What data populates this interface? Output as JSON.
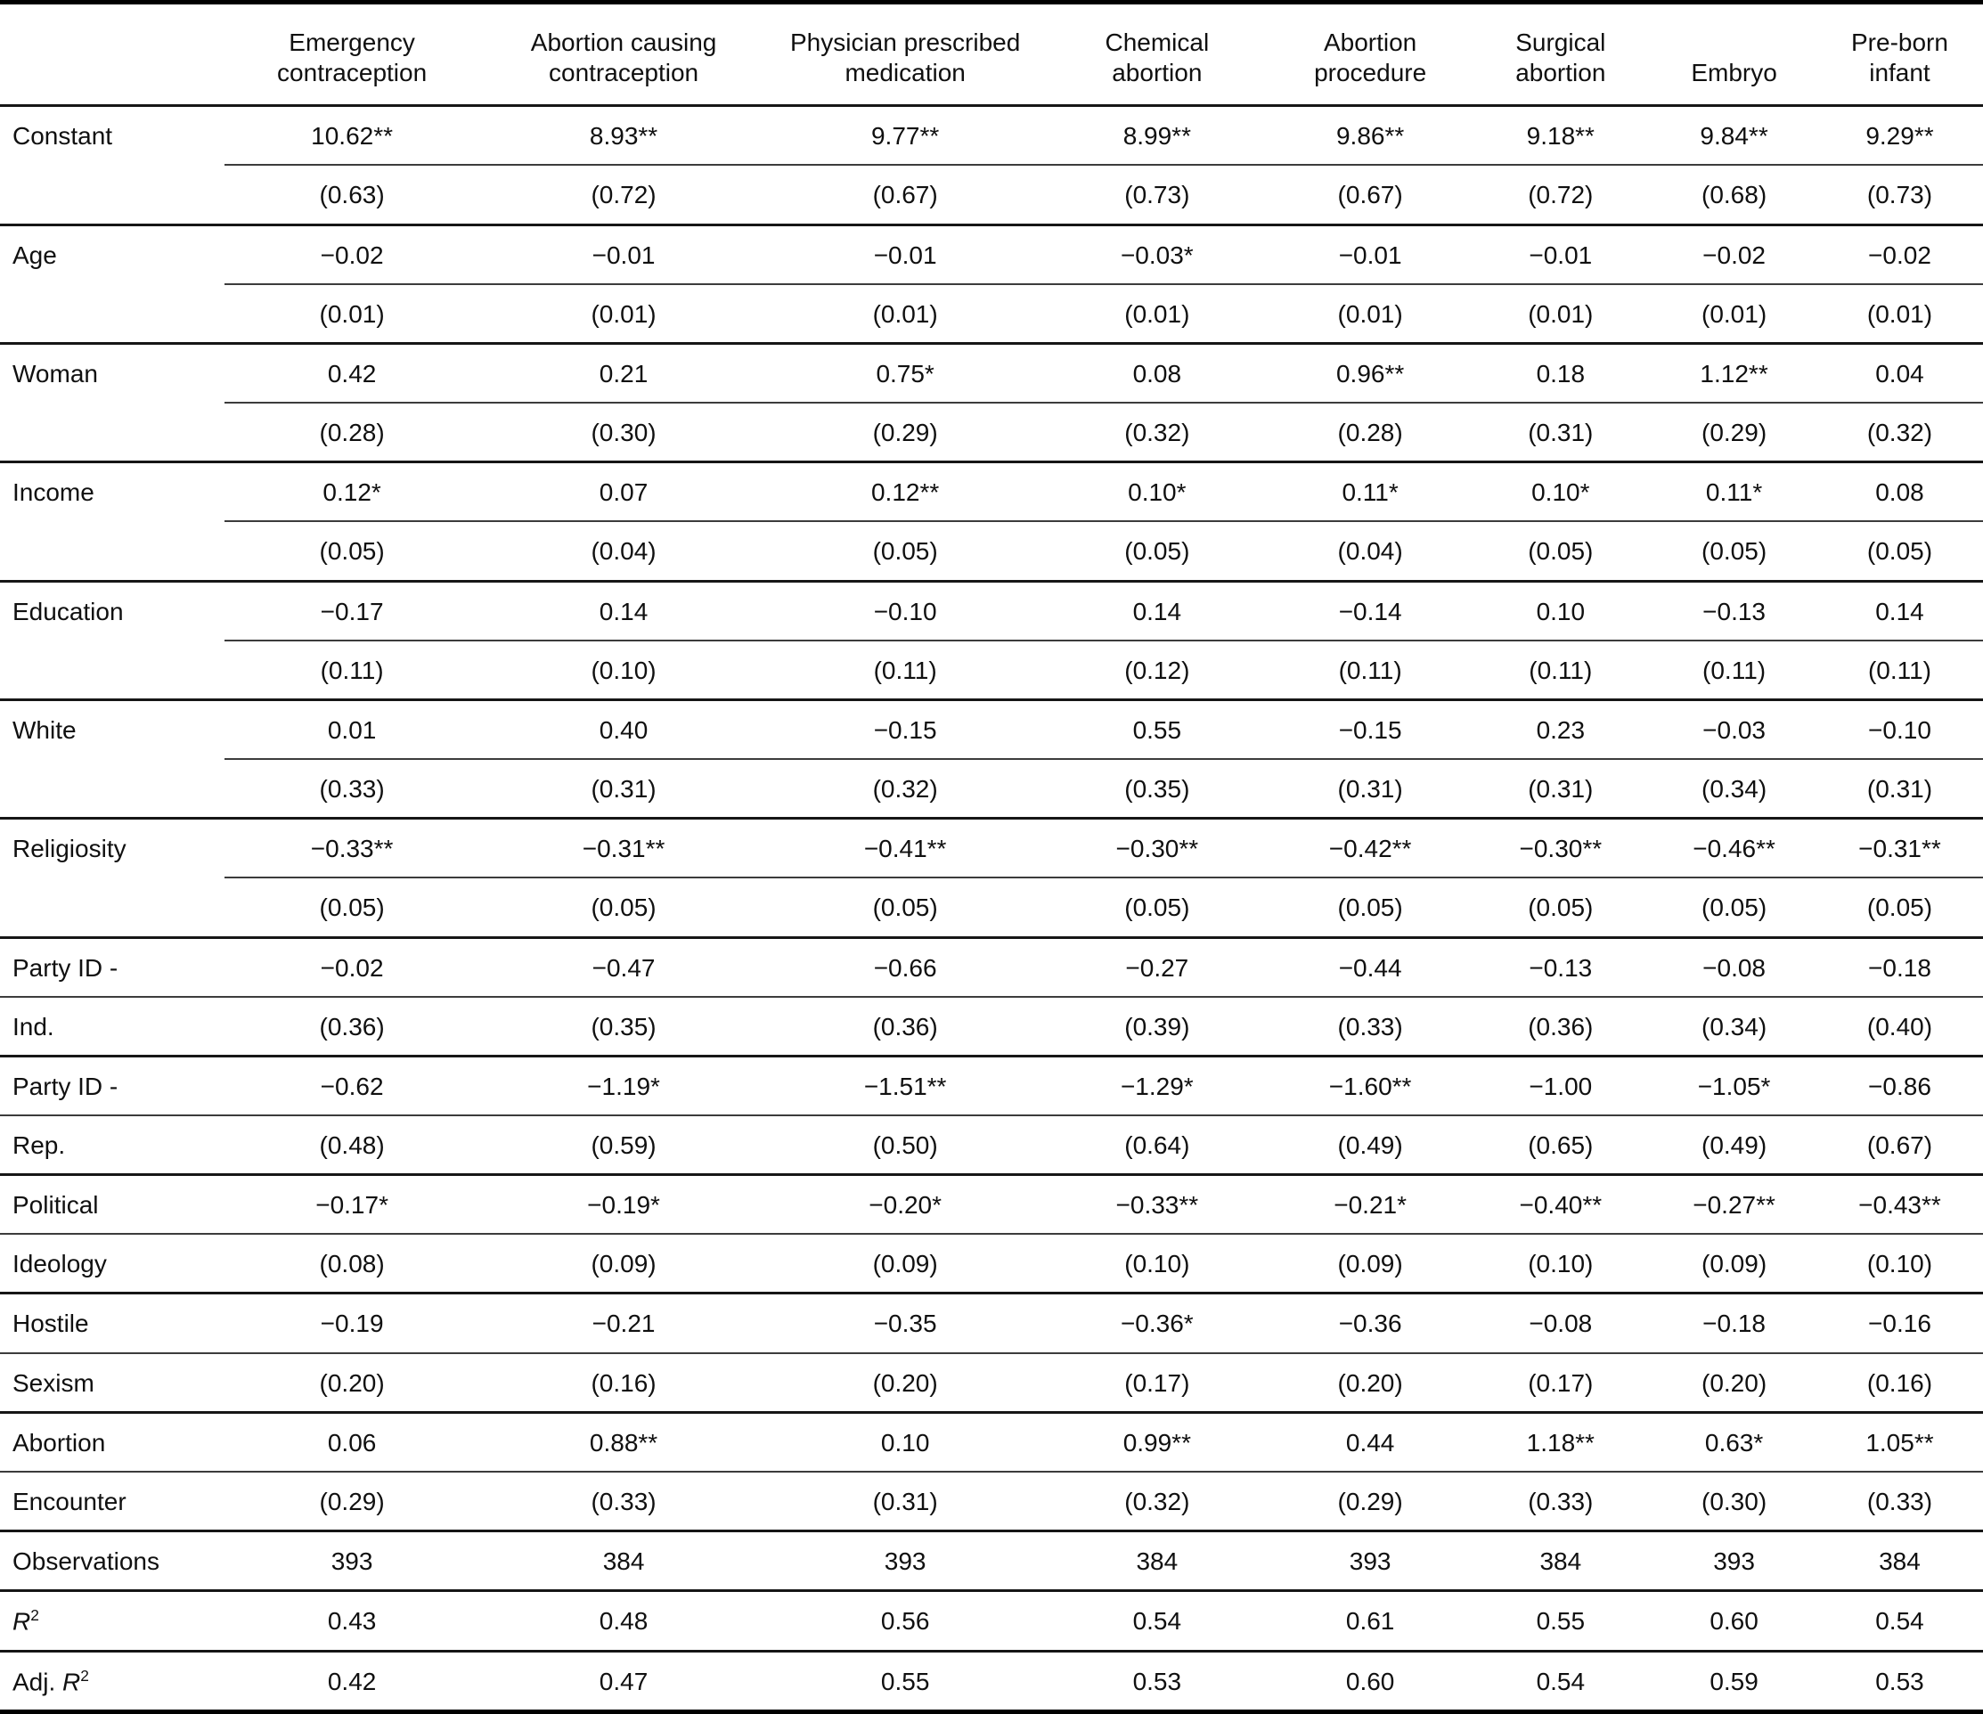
{
  "table": {
    "columns": [
      {
        "lines": [
          "Emergency",
          "contraception"
        ]
      },
      {
        "lines": [
          "Abortion causing",
          "contraception"
        ]
      },
      {
        "lines": [
          "Physician prescribed",
          "medication"
        ]
      },
      {
        "lines": [
          "Chemical",
          "abortion"
        ]
      },
      {
        "lines": [
          "Abortion",
          "procedure"
        ]
      },
      {
        "lines": [
          "Surgical",
          "abortion"
        ]
      },
      {
        "lines": [
          "Embryo"
        ]
      },
      {
        "lines": [
          "Pre-born",
          "infant"
        ]
      }
    ],
    "rows": [
      {
        "type": "block",
        "label": "Constant",
        "coef": [
          "10.62**",
          "8.93**",
          "9.77**",
          "8.99**",
          "9.86**",
          "9.18**",
          "9.84**",
          "9.29**"
        ],
        "se": [
          "(0.63)",
          "(0.72)",
          "(0.67)",
          "(0.73)",
          "(0.67)",
          "(0.72)",
          "(0.68)",
          "(0.73)"
        ]
      },
      {
        "type": "block",
        "label": "Age",
        "coef": [
          "−0.02",
          "−0.01",
          "−0.01",
          "−0.03*",
          "−0.01",
          "−0.01",
          "−0.02",
          "−0.02"
        ],
        "se": [
          "(0.01)",
          "(0.01)",
          "(0.01)",
          "(0.01)",
          "(0.01)",
          "(0.01)",
          "(0.01)",
          "(0.01)"
        ]
      },
      {
        "type": "block",
        "label": "Woman",
        "coef": [
          "0.42",
          "0.21",
          "0.75*",
          "0.08",
          "0.96**",
          "0.18",
          "1.12**",
          "0.04"
        ],
        "se": [
          "(0.28)",
          "(0.30)",
          "(0.29)",
          "(0.32)",
          "(0.28)",
          "(0.31)",
          "(0.29)",
          "(0.32)"
        ]
      },
      {
        "type": "block",
        "label": "Income",
        "coef": [
          "0.12*",
          "0.07",
          "0.12**",
          "0.10*",
          "0.11*",
          "0.10*",
          "0.11*",
          "0.08"
        ],
        "se": [
          "(0.05)",
          "(0.04)",
          "(0.05)",
          "(0.05)",
          "(0.04)",
          "(0.05)",
          "(0.05)",
          "(0.05)"
        ]
      },
      {
        "type": "block",
        "label": "Education",
        "coef": [
          "−0.17",
          "0.14",
          "−0.10",
          "0.14",
          "−0.14",
          "0.10",
          "−0.13",
          "0.14"
        ],
        "se": [
          "(0.11)",
          "(0.10)",
          "(0.11)",
          "(0.12)",
          "(0.11)",
          "(0.11)",
          "(0.11)",
          "(0.11)"
        ]
      },
      {
        "type": "block",
        "label": "White",
        "coef": [
          "0.01",
          "0.40",
          "−0.15",
          "0.55",
          "−0.15",
          "0.23",
          "−0.03",
          "−0.10"
        ],
        "se": [
          "(0.33)",
          "(0.31)",
          "(0.32)",
          "(0.35)",
          "(0.31)",
          "(0.31)",
          "(0.34)",
          "(0.31)"
        ]
      },
      {
        "type": "block",
        "label": "Religiosity",
        "coef": [
          "−0.33**",
          "−0.31**",
          "−0.41**",
          "−0.30**",
          "−0.42**",
          "−0.30**",
          "−0.46**",
          "−0.31**"
        ],
        "se": [
          "(0.05)",
          "(0.05)",
          "(0.05)",
          "(0.05)",
          "(0.05)",
          "(0.05)",
          "(0.05)",
          "(0.05)"
        ]
      },
      {
        "type": "pair",
        "label1": "Party ID -",
        "label2": "Ind.",
        "coef": [
          "−0.02",
          "−0.47",
          "−0.66",
          "−0.27",
          "−0.44",
          "−0.13",
          "−0.08",
          "−0.18"
        ],
        "se": [
          "(0.36)",
          "(0.35)",
          "(0.36)",
          "(0.39)",
          "(0.33)",
          "(0.36)",
          "(0.34)",
          "(0.40)"
        ]
      },
      {
        "type": "pair",
        "label1": "Party ID -",
        "label2": "Rep.",
        "coef": [
          "−0.62",
          "−1.19*",
          "−1.51**",
          "−1.29*",
          "−1.60**",
          "−1.00",
          "−1.05*",
          "−0.86"
        ],
        "se": [
          "(0.48)",
          "(0.59)",
          "(0.50)",
          "(0.64)",
          "(0.49)",
          "(0.65)",
          "(0.49)",
          "(0.67)"
        ]
      },
      {
        "type": "pair",
        "label1": "Political",
        "label2": "Ideology",
        "coef": [
          "−0.17*",
          "−0.19*",
          "−0.20*",
          "−0.33**",
          "−0.21*",
          "−0.40**",
          "−0.27**",
          "−0.43**"
        ],
        "se": [
          "(0.08)",
          "(0.09)",
          "(0.09)",
          "(0.10)",
          "(0.09)",
          "(0.10)",
          "(0.09)",
          "(0.10)"
        ]
      },
      {
        "type": "pair",
        "label1": "Hostile",
        "label2": "Sexism",
        "coef": [
          "−0.19",
          "−0.21",
          "−0.35",
          "−0.36*",
          "−0.36",
          "−0.08",
          "−0.18",
          "−0.16"
        ],
        "se": [
          "(0.20)",
          "(0.16)",
          "(0.20)",
          "(0.17)",
          "(0.20)",
          "(0.17)",
          "(0.20)",
          "(0.16)"
        ]
      },
      {
        "type": "pair",
        "label1": "Abortion",
        "label2": "Encounter",
        "coef": [
          "0.06",
          "0.88**",
          "0.10",
          "0.99**",
          "0.44",
          "1.18**",
          "0.63*",
          "1.05**"
        ],
        "se": [
          "(0.29)",
          "(0.33)",
          "(0.31)",
          "(0.32)",
          "(0.29)",
          "(0.33)",
          "(0.30)",
          "(0.33)"
        ]
      },
      {
        "type": "single",
        "label": "Observations",
        "values": [
          "393",
          "384",
          "393",
          "384",
          "393",
          "384",
          "393",
          "384"
        ]
      },
      {
        "type": "single",
        "label_italic": "R",
        "label_sup": "2",
        "values": [
          "0.43",
          "0.48",
          "0.56",
          "0.54",
          "0.61",
          "0.55",
          "0.60",
          "0.54"
        ]
      },
      {
        "type": "single",
        "label_prefix": "Adj. ",
        "label_italic": "R",
        "label_sup": "2",
        "values": [
          "0.42",
          "0.47",
          "0.55",
          "0.53",
          "0.60",
          "0.54",
          "0.59",
          "0.53"
        ]
      }
    ],
    "column_widths_pct": [
      11.3,
      12.9,
      14.5,
      13.9,
      11.5,
      10.0,
      9.2,
      8.3,
      8.4
    ]
  }
}
